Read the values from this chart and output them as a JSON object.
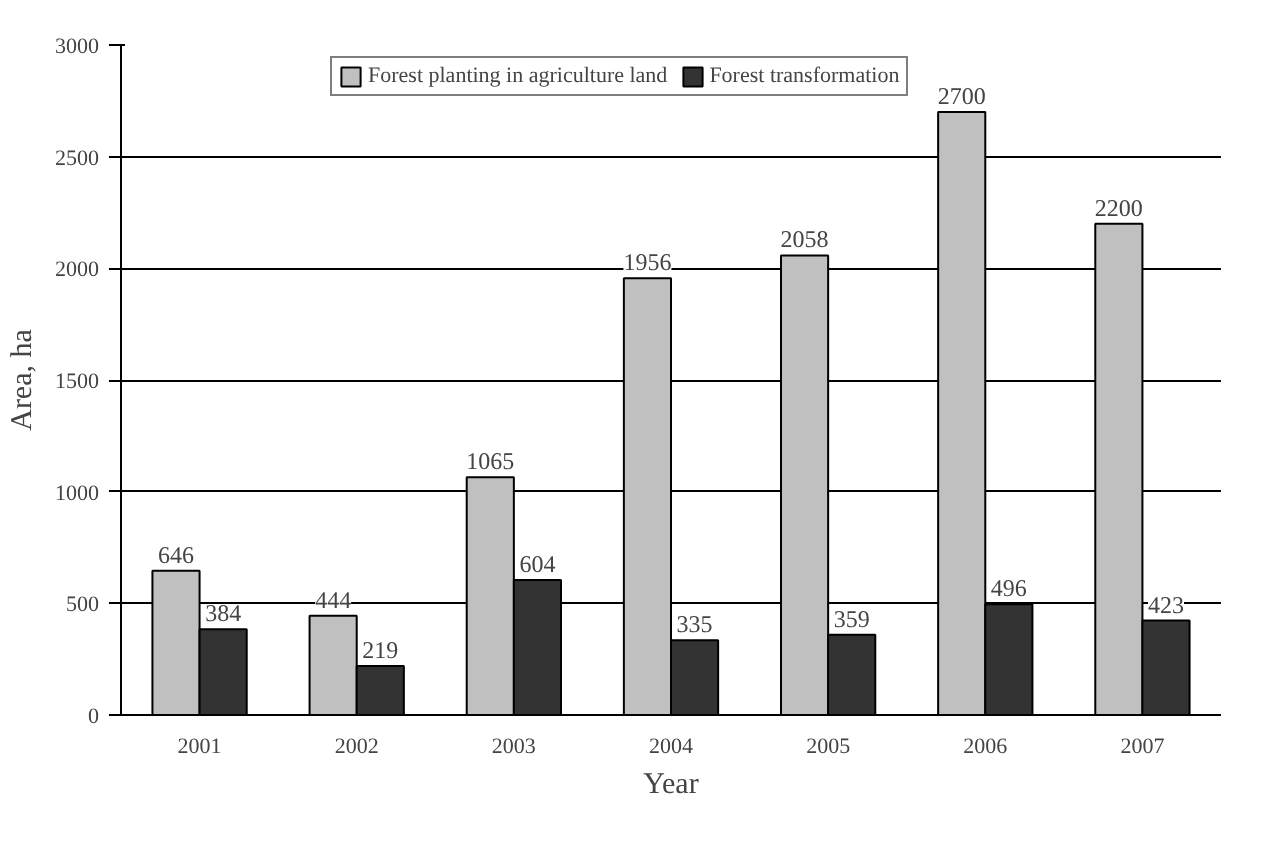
{
  "chart_data": {
    "type": "bar",
    "xlabel": "Year",
    "ylabel": "Area, ha",
    "categories": [
      "2001",
      "2002",
      "2003",
      "2004",
      "2005",
      "2006",
      "2007"
    ],
    "series": [
      {
        "name": "Forest planting in agriculture land",
        "color": "#c0c0c0",
        "values": [
          646,
          444,
          1065,
          1956,
          2058,
          2700,
          2200
        ]
      },
      {
        "name": "Forest transformation",
        "color": "#333333",
        "values": [
          384,
          219,
          604,
          335,
          359,
          496,
          423
        ]
      }
    ],
    "ylim": [
      0,
      3000
    ],
    "yticks": [
      0,
      500,
      1000,
      1500,
      2000,
      2500,
      3000
    ],
    "grid": "y",
    "legend": "top",
    "data_labels": true
  }
}
